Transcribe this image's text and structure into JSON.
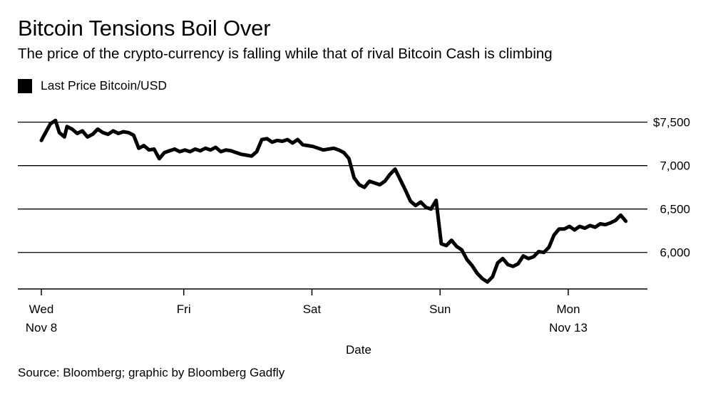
{
  "header": {
    "title": "Bitcoin Tensions Boil Over",
    "subtitle": "The price of the crypto-currency is falling while that of rival Bitcoin Cash is climbing"
  },
  "footer": {
    "source": "Source: Bloomberg; graphic by Bloomberg Gadfly"
  },
  "chart_data": {
    "type": "line",
    "title": "Bitcoin Tensions Boil Over",
    "subtitle": "The price of the crypto-currency is falling while that of rival Bitcoin Cash is climbing",
    "xlabel": "Date",
    "ylabel": "",
    "ylim": [
      5580,
      7620
    ],
    "y_ticks": [
      {
        "value": 6000,
        "label": "6,000"
      },
      {
        "value": 6500,
        "label": "6,500"
      },
      {
        "value": 7000,
        "label": "7,000"
      },
      {
        "value": 7500,
        "label": "$7,500"
      }
    ],
    "x_ticks": [
      {
        "value": 0,
        "line1": "Wed",
        "line2": "Nov 8"
      },
      {
        "value": 1.111,
        "line1": "Fri",
        "line2": ""
      },
      {
        "value": 2.111,
        "line1": "Sat",
        "line2": ""
      },
      {
        "value": 3.111,
        "line1": "Sun",
        "line2": ""
      },
      {
        "value": 4.111,
        "line1": "Mon",
        "line2": "Nov 13"
      }
    ],
    "grid": true,
    "legend": "top-left",
    "series": [
      {
        "name": "Last Price Bitcoin/USD",
        "color": "#000000",
        "x": [
          0.0,
          0.04,
          0.07,
          0.11,
          0.14,
          0.18,
          0.2,
          0.24,
          0.28,
          0.32,
          0.36,
          0.4,
          0.44,
          0.48,
          0.52,
          0.56,
          0.6,
          0.64,
          0.68,
          0.72,
          0.76,
          0.8,
          0.84,
          0.88,
          0.92,
          0.96,
          1.0,
          1.04,
          1.08,
          1.12,
          1.16,
          1.2,
          1.24,
          1.28,
          1.32,
          1.36,
          1.4,
          1.44,
          1.48,
          1.52,
          1.56,
          1.6,
          1.64,
          1.68,
          1.72,
          1.76,
          1.8,
          1.84,
          1.88,
          1.92,
          1.96,
          2.0,
          2.04,
          2.08,
          2.12,
          2.16,
          2.2,
          2.24,
          2.28,
          2.32,
          2.36,
          2.4,
          2.44,
          2.48,
          2.52,
          2.56,
          2.6,
          2.64,
          2.68,
          2.72,
          2.76,
          2.8,
          2.84,
          2.88,
          2.92,
          2.96,
          3.0,
          3.04,
          3.08,
          3.12,
          3.16,
          3.2,
          3.24,
          3.28,
          3.32,
          3.36,
          3.4,
          3.44,
          3.48,
          3.52,
          3.56,
          3.6,
          3.64,
          3.68,
          3.72,
          3.76,
          3.8,
          3.84,
          3.88,
          3.92,
          3.96,
          4.0,
          4.04,
          4.08,
          4.12,
          4.16,
          4.2,
          4.24,
          4.28,
          4.32,
          4.36,
          4.4,
          4.44,
          4.48,
          4.52,
          4.56
        ],
        "y": [
          7290,
          7400,
          7480,
          7520,
          7380,
          7330,
          7450,
          7420,
          7370,
          7400,
          7330,
          7360,
          7420,
          7380,
          7360,
          7400,
          7370,
          7390,
          7380,
          7350,
          7200,
          7230,
          7180,
          7190,
          7080,
          7150,
          7170,
          7190,
          7160,
          7180,
          7160,
          7190,
          7170,
          7200,
          7180,
          7210,
          7160,
          7180,
          7170,
          7150,
          7130,
          7120,
          7110,
          7160,
          7300,
          7310,
          7270,
          7290,
          7280,
          7300,
          7260,
          7300,
          7240,
          7230,
          7220,
          7200,
          7180,
          7190,
          7200,
          7180,
          7150,
          7080,
          6860,
          6780,
          6750,
          6820,
          6800,
          6780,
          6820,
          6900,
          6960,
          6840,
          6720,
          6590,
          6540,
          6580,
          6520,
          6500,
          6600,
          6100,
          6080,
          6140,
          6070,
          6030,
          5920,
          5850,
          5760,
          5700,
          5660,
          5720,
          5880,
          5930,
          5860,
          5840,
          5870,
          5960,
          5930,
          5950,
          6010,
          6000,
          6060,
          6200,
          6270,
          6270,
          6300,
          6260,
          6300,
          6280,
          6310,
          6290,
          6330,
          6320,
          6340,
          6370,
          6430,
          6360
        ]
      }
    ]
  }
}
